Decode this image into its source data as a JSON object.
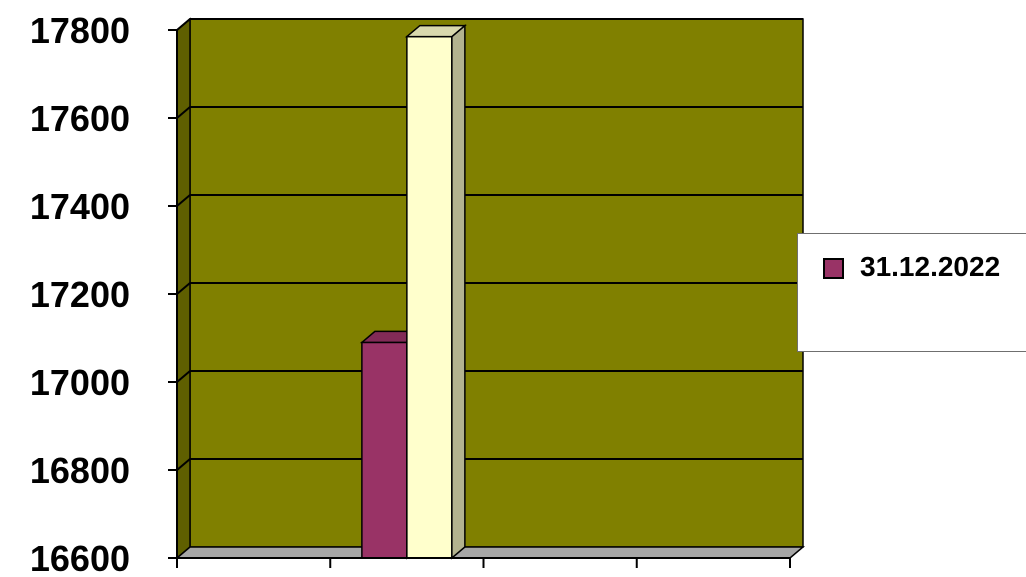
{
  "chart_data": {
    "type": "bar",
    "title": "",
    "xlabel": "",
    "ylabel": "",
    "ylim": [
      16600,
      17800
    ],
    "yticks": [
      16600,
      16800,
      17000,
      17200,
      17400,
      17600,
      17800
    ],
    "ytick_labels": [
      "16600",
      "16800",
      "17000",
      "17200",
      "17400",
      "17600",
      "17800"
    ],
    "categories": [
      "",
      "",
      "",
      ""
    ],
    "grid": true,
    "three_d": true,
    "legend_position": "right",
    "series": [
      {
        "name": "31.12.2022",
        "values": [
          null,
          17090,
          null,
          null
        ],
        "color": "#993366"
      },
      {
        "values": [
          null,
          17785,
          null,
          null
        ],
        "color": "#ffffcc"
      }
    ],
    "colors": {
      "plot_background": "#808000",
      "floor": "#a6a6a6"
    }
  }
}
